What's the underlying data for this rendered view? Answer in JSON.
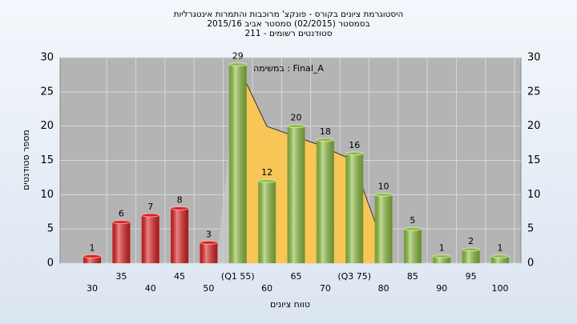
{
  "chart_data": {
    "type": "bar",
    "title": [
      "היסטוגרמת ציונים בקורס - פונקצ' מרוכבות והתמרות אינטגרליות",
      "בסמסטר  (02/2015)  סמסטר אביב 2015/16",
      "סטודנטים רשומים - 211"
    ],
    "annotation": "במשימה : Final_A",
    "xlabel": "טווח ציונים",
    "ylabel": "מספר סטודנטים",
    "categories": [
      "30",
      "35",
      "40",
      "45",
      "50",
      "(Q1 55)",
      "60",
      "65",
      "70",
      "(Q3 75)",
      "80",
      "85",
      "90",
      "95",
      "100"
    ],
    "values": [
      1,
      6,
      7,
      8,
      3,
      29,
      12,
      20,
      18,
      16,
      10,
      5,
      1,
      2,
      1
    ],
    "colors": [
      "#e02020",
      "#e02020",
      "#e02020",
      "#e02020",
      "#e02020",
      "#8fc040",
      "#8fc040",
      "#8fc040",
      "#8fc040",
      "#8fc040",
      "#8fc040",
      "#8fc040",
      "#8fc040",
      "#8fc040",
      "#8fc040"
    ],
    "ylim": [
      0,
      30
    ],
    "yticks": [
      0,
      5,
      10,
      15,
      20,
      25,
      30
    ],
    "grid": true,
    "secondary_y_axis": true
  }
}
